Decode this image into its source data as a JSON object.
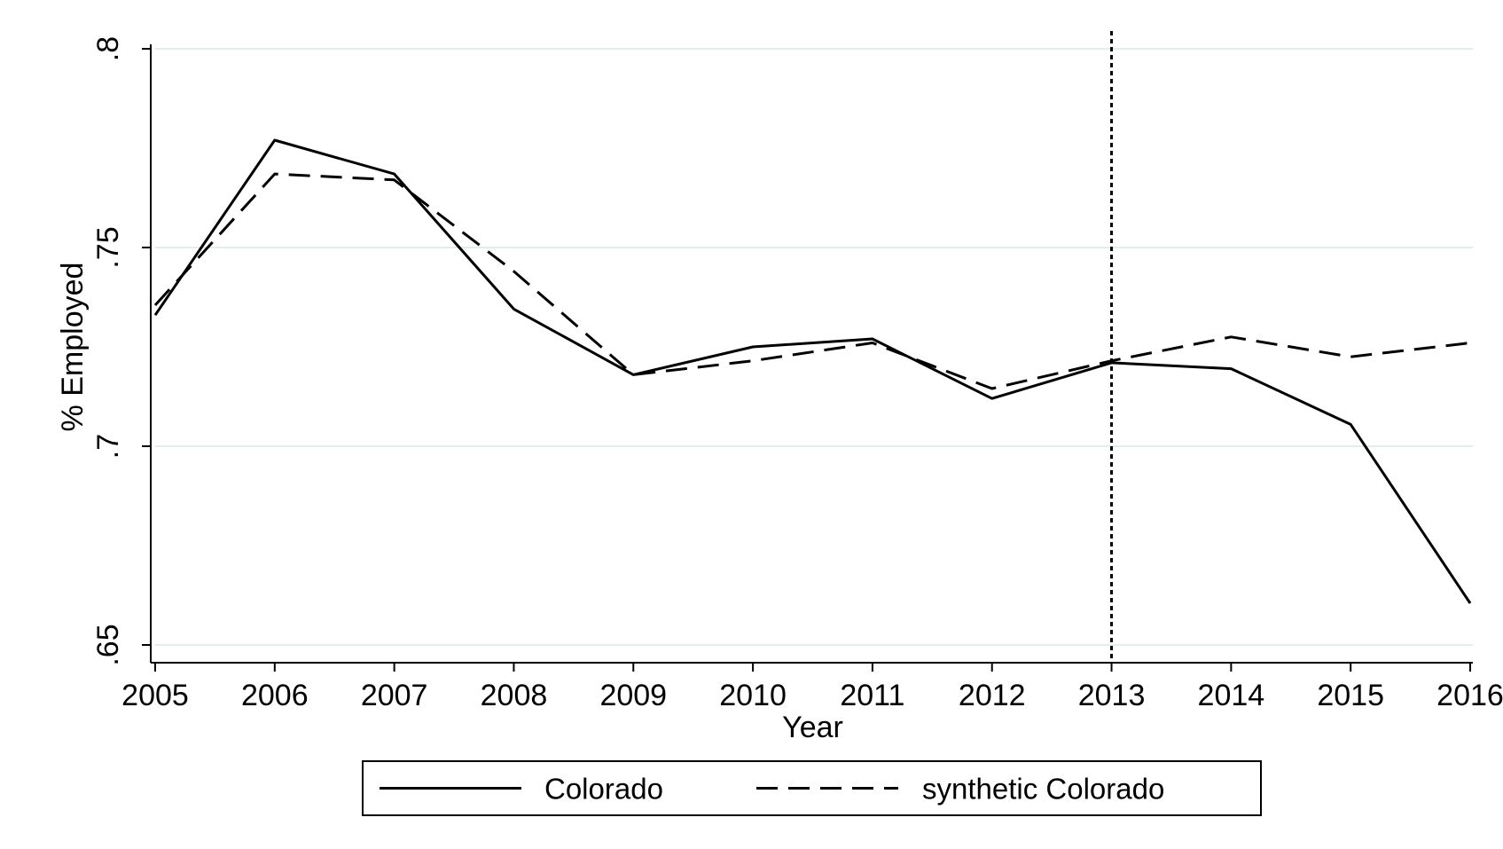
{
  "chart_data": {
    "type": "line",
    "title": "",
    "xlabel": "Year",
    "ylabel": "% Employed",
    "x": [
      2005,
      2006,
      2007,
      2008,
      2009,
      2010,
      2011,
      2012,
      2013,
      2014,
      2015,
      2016
    ],
    "x_tick_labels": [
      "2005",
      "2006",
      "2007",
      "2008",
      "2009",
      "2010",
      "2011",
      "2012",
      "2013",
      "2014",
      "2015",
      "2016"
    ],
    "y_ticks": [
      0.65,
      0.7,
      0.75,
      0.8
    ],
    "y_tick_labels": [
      ".65",
      ".7",
      ".75",
      ".8"
    ],
    "xlim": [
      2005,
      2016
    ],
    "ylim": [
      0.65,
      0.8
    ],
    "grid": true,
    "y_tick_orientation": "rotated-vertical",
    "series": [
      {
        "name": "Colorado",
        "style": "solid",
        "color": "#000000",
        "values": [
          0.733,
          0.777,
          0.7685,
          0.7345,
          0.718,
          0.725,
          0.727,
          0.712,
          0.721,
          0.7195,
          0.7055,
          0.6605
        ]
      },
      {
        "name": "synthetic Colorado",
        "style": "dashed",
        "color": "#000000",
        "values": [
          0.7355,
          0.7685,
          0.767,
          0.744,
          0.718,
          0.7215,
          0.726,
          0.7145,
          0.7215,
          0.7275,
          0.7225,
          0.726
        ]
      }
    ],
    "reference_lines": [
      {
        "axis": "x",
        "value": 2013,
        "style": "dotted",
        "color": "#000000"
      }
    ],
    "legend": {
      "placement": "bottom",
      "entries": [
        "Colorado",
        "synthetic Colorado"
      ]
    },
    "colors": {
      "gridline": "#e3ede9",
      "axis": "#000000",
      "background": "#ffffff"
    }
  }
}
